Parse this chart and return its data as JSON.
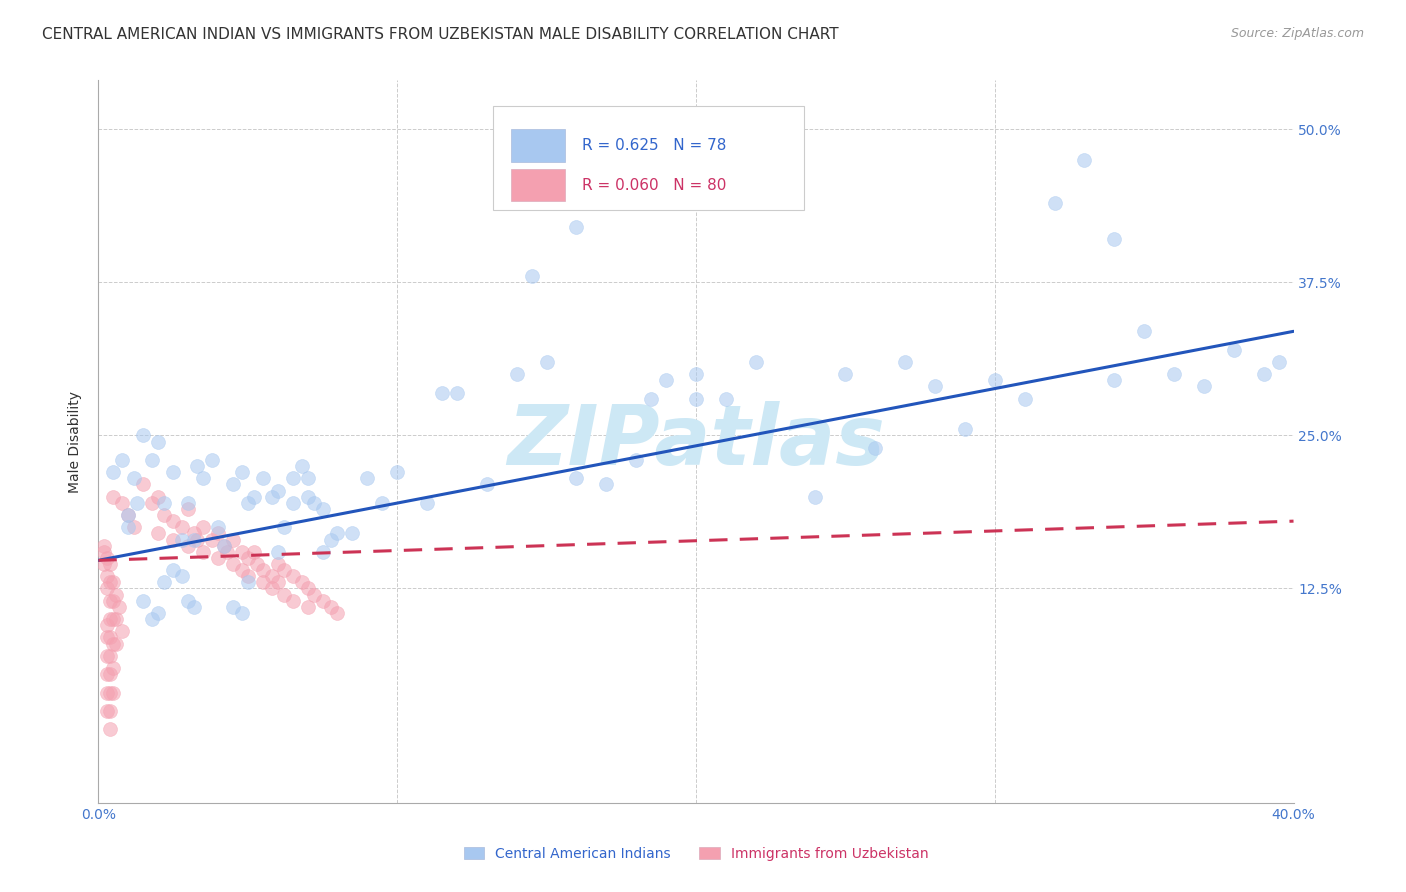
{
  "title": "CENTRAL AMERICAN INDIAN VS IMMIGRANTS FROM UZBEKISTAN MALE DISABILITY CORRELATION CHART",
  "source": "Source: ZipAtlas.com",
  "ylabel": "Male Disability",
  "legend_label1": "Central American Indians",
  "legend_label2": "Immigrants from Uzbekistan",
  "blue_scatter": [
    [
      0.005,
      0.22
    ],
    [
      0.008,
      0.23
    ],
    [
      0.01,
      0.185
    ],
    [
      0.012,
      0.215
    ],
    [
      0.013,
      0.195
    ],
    [
      0.015,
      0.25
    ],
    [
      0.018,
      0.23
    ],
    [
      0.02,
      0.245
    ],
    [
      0.022,
      0.195
    ],
    [
      0.025,
      0.22
    ],
    [
      0.028,
      0.165
    ],
    [
      0.03,
      0.195
    ],
    [
      0.032,
      0.165
    ],
    [
      0.033,
      0.225
    ],
    [
      0.035,
      0.215
    ],
    [
      0.038,
      0.23
    ],
    [
      0.04,
      0.175
    ],
    [
      0.042,
      0.16
    ],
    [
      0.045,
      0.21
    ],
    [
      0.048,
      0.22
    ],
    [
      0.05,
      0.195
    ],
    [
      0.052,
      0.2
    ],
    [
      0.055,
      0.215
    ],
    [
      0.058,
      0.2
    ],
    [
      0.06,
      0.205
    ],
    [
      0.062,
      0.175
    ],
    [
      0.065,
      0.215
    ],
    [
      0.068,
      0.225
    ],
    [
      0.07,
      0.2
    ],
    [
      0.072,
      0.195
    ],
    [
      0.075,
      0.19
    ],
    [
      0.078,
      0.165
    ],
    [
      0.01,
      0.175
    ],
    [
      0.015,
      0.115
    ],
    [
      0.018,
      0.1
    ],
    [
      0.02,
      0.105
    ],
    [
      0.022,
      0.13
    ],
    [
      0.025,
      0.14
    ],
    [
      0.028,
      0.135
    ],
    [
      0.03,
      0.115
    ],
    [
      0.032,
      0.11
    ],
    [
      0.045,
      0.11
    ],
    [
      0.048,
      0.105
    ],
    [
      0.05,
      0.13
    ],
    [
      0.06,
      0.155
    ],
    [
      0.065,
      0.195
    ],
    [
      0.07,
      0.215
    ],
    [
      0.075,
      0.155
    ],
    [
      0.08,
      0.17
    ],
    [
      0.085,
      0.17
    ],
    [
      0.09,
      0.215
    ],
    [
      0.095,
      0.195
    ],
    [
      0.1,
      0.22
    ],
    [
      0.11,
      0.195
    ],
    [
      0.115,
      0.285
    ],
    [
      0.12,
      0.285
    ],
    [
      0.13,
      0.21
    ],
    [
      0.14,
      0.3
    ],
    [
      0.145,
      0.38
    ],
    [
      0.15,
      0.31
    ],
    [
      0.16,
      0.215
    ],
    [
      0.16,
      0.42
    ],
    [
      0.17,
      0.21
    ],
    [
      0.18,
      0.23
    ],
    [
      0.185,
      0.28
    ],
    [
      0.19,
      0.295
    ],
    [
      0.2,
      0.28
    ],
    [
      0.2,
      0.3
    ],
    [
      0.21,
      0.28
    ],
    [
      0.22,
      0.31
    ],
    [
      0.24,
      0.2
    ],
    [
      0.25,
      0.3
    ],
    [
      0.26,
      0.24
    ],
    [
      0.27,
      0.31
    ],
    [
      0.28,
      0.29
    ],
    [
      0.29,
      0.255
    ],
    [
      0.3,
      0.295
    ],
    [
      0.31,
      0.28
    ],
    [
      0.32,
      0.44
    ],
    [
      0.33,
      0.475
    ],
    [
      0.34,
      0.295
    ],
    [
      0.34,
      0.41
    ],
    [
      0.35,
      0.335
    ],
    [
      0.36,
      0.3
    ],
    [
      0.37,
      0.29
    ],
    [
      0.38,
      0.32
    ],
    [
      0.39,
      0.3
    ],
    [
      0.395,
      0.31
    ]
  ],
  "pink_scatter": [
    [
      0.005,
      0.2
    ],
    [
      0.008,
      0.195
    ],
    [
      0.01,
      0.185
    ],
    [
      0.012,
      0.175
    ],
    [
      0.015,
      0.21
    ],
    [
      0.018,
      0.195
    ],
    [
      0.02,
      0.2
    ],
    [
      0.02,
      0.17
    ],
    [
      0.022,
      0.185
    ],
    [
      0.025,
      0.18
    ],
    [
      0.025,
      0.165
    ],
    [
      0.028,
      0.175
    ],
    [
      0.03,
      0.19
    ],
    [
      0.03,
      0.16
    ],
    [
      0.032,
      0.17
    ],
    [
      0.033,
      0.165
    ],
    [
      0.035,
      0.175
    ],
    [
      0.035,
      0.155
    ],
    [
      0.038,
      0.165
    ],
    [
      0.04,
      0.17
    ],
    [
      0.04,
      0.15
    ],
    [
      0.042,
      0.16
    ],
    [
      0.043,
      0.155
    ],
    [
      0.045,
      0.165
    ],
    [
      0.045,
      0.145
    ],
    [
      0.048,
      0.155
    ],
    [
      0.048,
      0.14
    ],
    [
      0.05,
      0.15
    ],
    [
      0.05,
      0.135
    ],
    [
      0.052,
      0.155
    ],
    [
      0.053,
      0.145
    ],
    [
      0.055,
      0.14
    ],
    [
      0.055,
      0.13
    ],
    [
      0.058,
      0.135
    ],
    [
      0.058,
      0.125
    ],
    [
      0.06,
      0.145
    ],
    [
      0.06,
      0.13
    ],
    [
      0.062,
      0.14
    ],
    [
      0.062,
      0.12
    ],
    [
      0.065,
      0.135
    ],
    [
      0.065,
      0.115
    ],
    [
      0.068,
      0.13
    ],
    [
      0.07,
      0.125
    ],
    [
      0.07,
      0.11
    ],
    [
      0.072,
      0.12
    ],
    [
      0.075,
      0.115
    ],
    [
      0.078,
      0.11
    ],
    [
      0.08,
      0.105
    ],
    [
      0.002,
      0.155
    ],
    [
      0.002,
      0.16
    ],
    [
      0.002,
      0.145
    ],
    [
      0.003,
      0.15
    ],
    [
      0.003,
      0.135
    ],
    [
      0.003,
      0.125
    ],
    [
      0.003,
      0.095
    ],
    [
      0.003,
      0.085
    ],
    [
      0.003,
      0.07
    ],
    [
      0.003,
      0.055
    ],
    [
      0.003,
      0.04
    ],
    [
      0.003,
      0.025
    ],
    [
      0.004,
      0.145
    ],
    [
      0.004,
      0.13
    ],
    [
      0.004,
      0.115
    ],
    [
      0.004,
      0.1
    ],
    [
      0.004,
      0.085
    ],
    [
      0.004,
      0.07
    ],
    [
      0.004,
      0.055
    ],
    [
      0.004,
      0.04
    ],
    [
      0.004,
      0.025
    ],
    [
      0.004,
      0.01
    ],
    [
      0.005,
      0.13
    ],
    [
      0.005,
      0.115
    ],
    [
      0.005,
      0.1
    ],
    [
      0.005,
      0.08
    ],
    [
      0.005,
      0.06
    ],
    [
      0.005,
      0.04
    ],
    [
      0.006,
      0.12
    ],
    [
      0.006,
      0.1
    ],
    [
      0.006,
      0.08
    ],
    [
      0.007,
      0.11
    ],
    [
      0.008,
      0.09
    ]
  ],
  "blue_line": [
    [
      0.0,
      0.148
    ],
    [
      0.4,
      0.335
    ]
  ],
  "pink_line": [
    [
      0.0,
      0.148
    ],
    [
      0.4,
      0.18
    ]
  ],
  "xlim": [
    0.0,
    0.4
  ],
  "ylim": [
    -0.05,
    0.54
  ],
  "background_color": "#ffffff",
  "grid_color": "#cccccc",
  "blue_color": "#a8c8f0",
  "pink_color": "#f4a0b0",
  "blue_line_color": "#2255bb",
  "pink_line_color": "#cc3355",
  "title_fontsize": 11,
  "source_fontsize": 9,
  "axis_label_fontsize": 10,
  "tick_fontsize": 10,
  "legend_fontsize": 11,
  "watermark_text": "ZIPatlas",
  "watermark_color": "#cde8f5",
  "watermark_fontsize": 60,
  "marker_size": 100,
  "marker_alpha": 0.55,
  "line_width": 2.2,
  "ytick_positions": [
    0.125,
    0.25,
    0.375,
    0.5
  ],
  "ytick_labels": [
    "12.5%",
    "25.0%",
    "37.5%",
    "50.0%"
  ],
  "xtick_positions": [
    0.0,
    0.1,
    0.2,
    0.3,
    0.4
  ],
  "xtick_labels": [
    "0.0%",
    "",
    "",
    "",
    "40.0%"
  ]
}
